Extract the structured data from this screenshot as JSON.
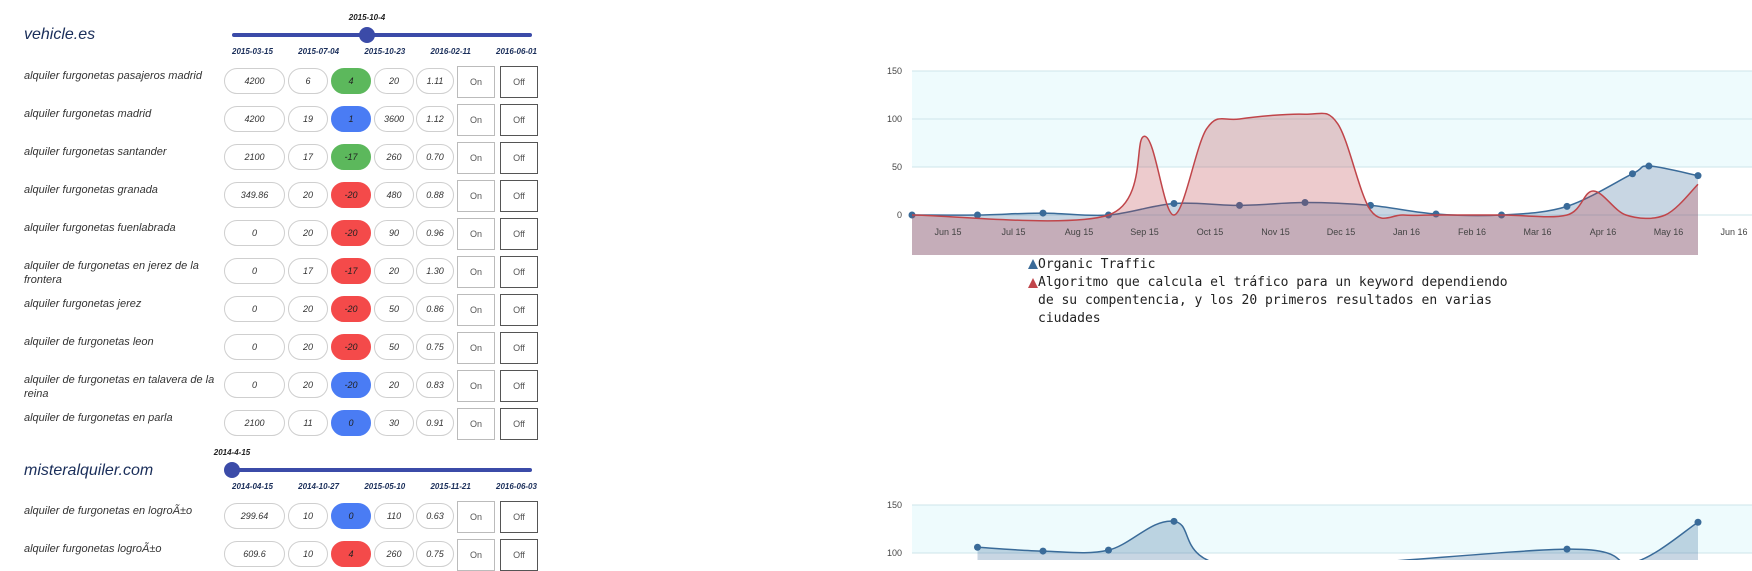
{
  "sites": [
    {
      "title": "vehicle.es",
      "slider_label": "2015-10-4",
      "slider_pos": 0.45,
      "dates": [
        "2015-03-15",
        "2015-07-04",
        "2015-10-23",
        "2016-02-11",
        "2016-06-01"
      ],
      "rows": [
        {
          "keyword": "alquiler furgonetas pasajeros madrid",
          "v1": "4200",
          "v2": "6",
          "v3": "4",
          "v3_color": "green",
          "v4": "20",
          "v5": "1.11"
        },
        {
          "keyword": "alquiler furgonetas madrid",
          "v1": "4200",
          "v2": "19",
          "v3": "1",
          "v3_color": "blue",
          "v4": "3600",
          "v5": "1.12"
        },
        {
          "keyword": "alquiler furgonetas santander",
          "v1": "2100",
          "v2": "17",
          "v3": "-17",
          "v3_color": "green",
          "v4": "260",
          "v5": "0.70"
        },
        {
          "keyword": "alquiler furgonetas granada",
          "v1": "349.86",
          "v2": "20",
          "v3": "-20",
          "v3_color": "red",
          "v4": "480",
          "v5": "0.88"
        },
        {
          "keyword": "alquiler furgonetas fuenlabrada",
          "v1": "0",
          "v2": "20",
          "v3": "-20",
          "v3_color": "red",
          "v4": "90",
          "v5": "0.96"
        },
        {
          "keyword": "alquiler de furgonetas en jerez de la frontera",
          "v1": "0",
          "v2": "17",
          "v3": "-17",
          "v3_color": "red",
          "v4": "20",
          "v5": "1.30"
        },
        {
          "keyword": "alquiler furgonetas jerez",
          "v1": "0",
          "v2": "20",
          "v3": "-20",
          "v3_color": "red",
          "v4": "50",
          "v5": "0.86"
        },
        {
          "keyword": "alquiler de furgonetas leon",
          "v1": "0",
          "v2": "20",
          "v3": "-20",
          "v3_color": "red",
          "v4": "50",
          "v5": "0.75"
        },
        {
          "keyword": "alquiler de furgonetas en talavera de la reina",
          "v1": "0",
          "v2": "20",
          "v3": "-20",
          "v3_color": "blue",
          "v4": "20",
          "v5": "0.83"
        },
        {
          "keyword": "alquiler de furgonetas en parla",
          "v1": "2100",
          "v2": "11",
          "v3": "0",
          "v3_color": "blue",
          "v4": "30",
          "v5": "0.91"
        }
      ]
    },
    {
      "title": "misteralquiler.com",
      "slider_label": "2014-4-15",
      "slider_pos": 0.0,
      "dates": [
        "2014-04-15",
        "2014-10-27",
        "2015-05-10",
        "2015-11-21",
        "2016-06-03"
      ],
      "rows": [
        {
          "keyword": "alquiler de furgonetas en logroÃ±o",
          "v1": "299.64",
          "v2": "10",
          "v3": "0",
          "v3_color": "blue",
          "v4": "110",
          "v5": "0.63"
        },
        {
          "keyword": "alquiler furgonetas logroÃ±o",
          "v1": "609.6",
          "v2": "10",
          "v3": "4",
          "v3_color": "red",
          "v4": "260",
          "v5": "0.75"
        }
      ]
    }
  ],
  "buttons": {
    "on": "On",
    "off": "Off"
  },
  "chart_data": [
    {
      "type": "area",
      "ylim": [
        0,
        150
      ],
      "yticks": [
        0,
        50,
        100,
        150
      ],
      "x_ticks": [
        "Jun 15",
        "Jul 15",
        "Aug 15",
        "Sep 15",
        "Oct 15",
        "Nov 15",
        "Dec 15",
        "Jan 16",
        "Feb 16",
        "Mar 16",
        "Apr 16",
        "May 16",
        "Jun 16"
      ],
      "series": [
        {
          "name": "Organic Traffic",
          "color": "#3a6b99",
          "x": [
            0,
            1,
            2,
            3,
            4,
            5,
            6,
            7,
            8,
            9,
            10,
            11,
            11.25,
            12
          ],
          "y": [
            0,
            0,
            2,
            0,
            12,
            10,
            13,
            10,
            1,
            0,
            9,
            43,
            51,
            41
          ]
        },
        {
          "name": "Algoritmo que calcula el tráfico para un keyword dependiendo de su compentencia, y los 20 primeros resultados en varias ciudades",
          "color": "#c0454a",
          "x": [
            0,
            3,
            3.55,
            4,
            4.5,
            5,
            6,
            6.5,
            7,
            7.5,
            8,
            9,
            10,
            10.4,
            10.9,
            11.5,
            12
          ],
          "y": [
            0,
            0,
            82,
            0,
            90,
            100,
            105,
            95,
            5,
            0,
            0,
            0,
            0,
            25,
            0,
            0,
            32
          ]
        }
      ]
    },
    {
      "type": "area",
      "ylim": [
        0,
        150
      ],
      "yticks": [
        100,
        150
      ],
      "series": [
        {
          "color": "#3a6b99",
          "x": [
            1,
            2,
            3,
            4,
            5,
            10,
            11,
            12
          ],
          "y": [
            106,
            102,
            103,
            133,
            85,
            104,
            90,
            132
          ]
        }
      ]
    }
  ]
}
